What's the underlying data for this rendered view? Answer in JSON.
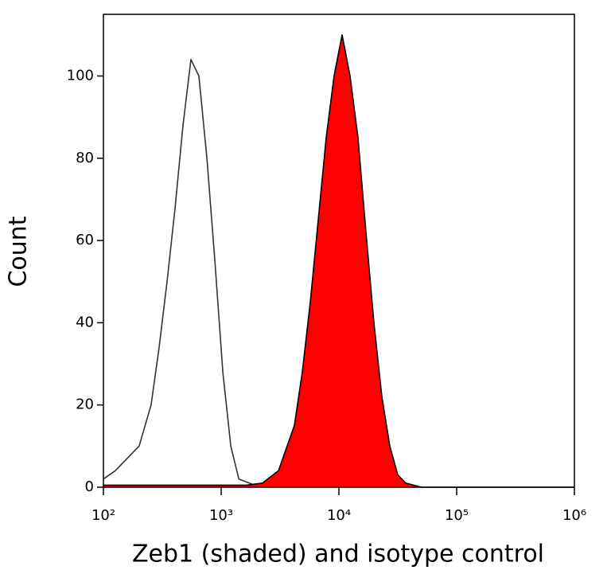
{
  "chart_data": {
    "type": "histogram-overlay",
    "xlabel": "Zeb1 (shaded) and isotype control",
    "ylabel": "Count",
    "xscale": "log",
    "xlim": [
      100,
      1000000
    ],
    "ylim": [
      0,
      115
    ],
    "xticks": [
      {
        "value": 100,
        "label": "10²"
      },
      {
        "value": 1000,
        "label": "10³"
      },
      {
        "value": 10000,
        "label": "10⁴"
      },
      {
        "value": 100000,
        "label": "10⁵"
      },
      {
        "value": 1000000,
        "label": "10⁶"
      }
    ],
    "yticks": [
      0,
      20,
      40,
      60,
      80,
      100
    ],
    "series": [
      {
        "color": "#333333",
        "fill": null,
        "x": [
          100,
          126,
          159,
          201,
          254,
          297,
          347,
          406,
          474,
          554,
          647,
          757,
          884,
          1034,
          1208,
          1412,
          1929,
          2634
        ],
        "values": [
          2,
          4,
          7,
          10,
          20,
          34,
          50,
          68,
          88,
          104,
          100,
          80,
          55,
          28,
          10,
          2,
          0.5,
          0
        ]
      },
      {
        "color": "#000000",
        "fill": "#ff0000",
        "x": [
          100,
          1644,
          2245,
          3064,
          4185,
          4890,
          5714,
          6670,
          7798,
          9100,
          10645,
          12437,
          14531,
          16977,
          19834,
          23173,
          27074,
          31631,
          36955,
          50443,
          1000000
        ],
        "values": [
          0.5,
          0.5,
          1,
          4,
          15,
          28,
          45,
          65,
          85,
          100,
          110,
          100,
          85,
          62,
          40,
          22,
          10,
          3,
          1,
          0,
          0
        ]
      }
    ]
  }
}
